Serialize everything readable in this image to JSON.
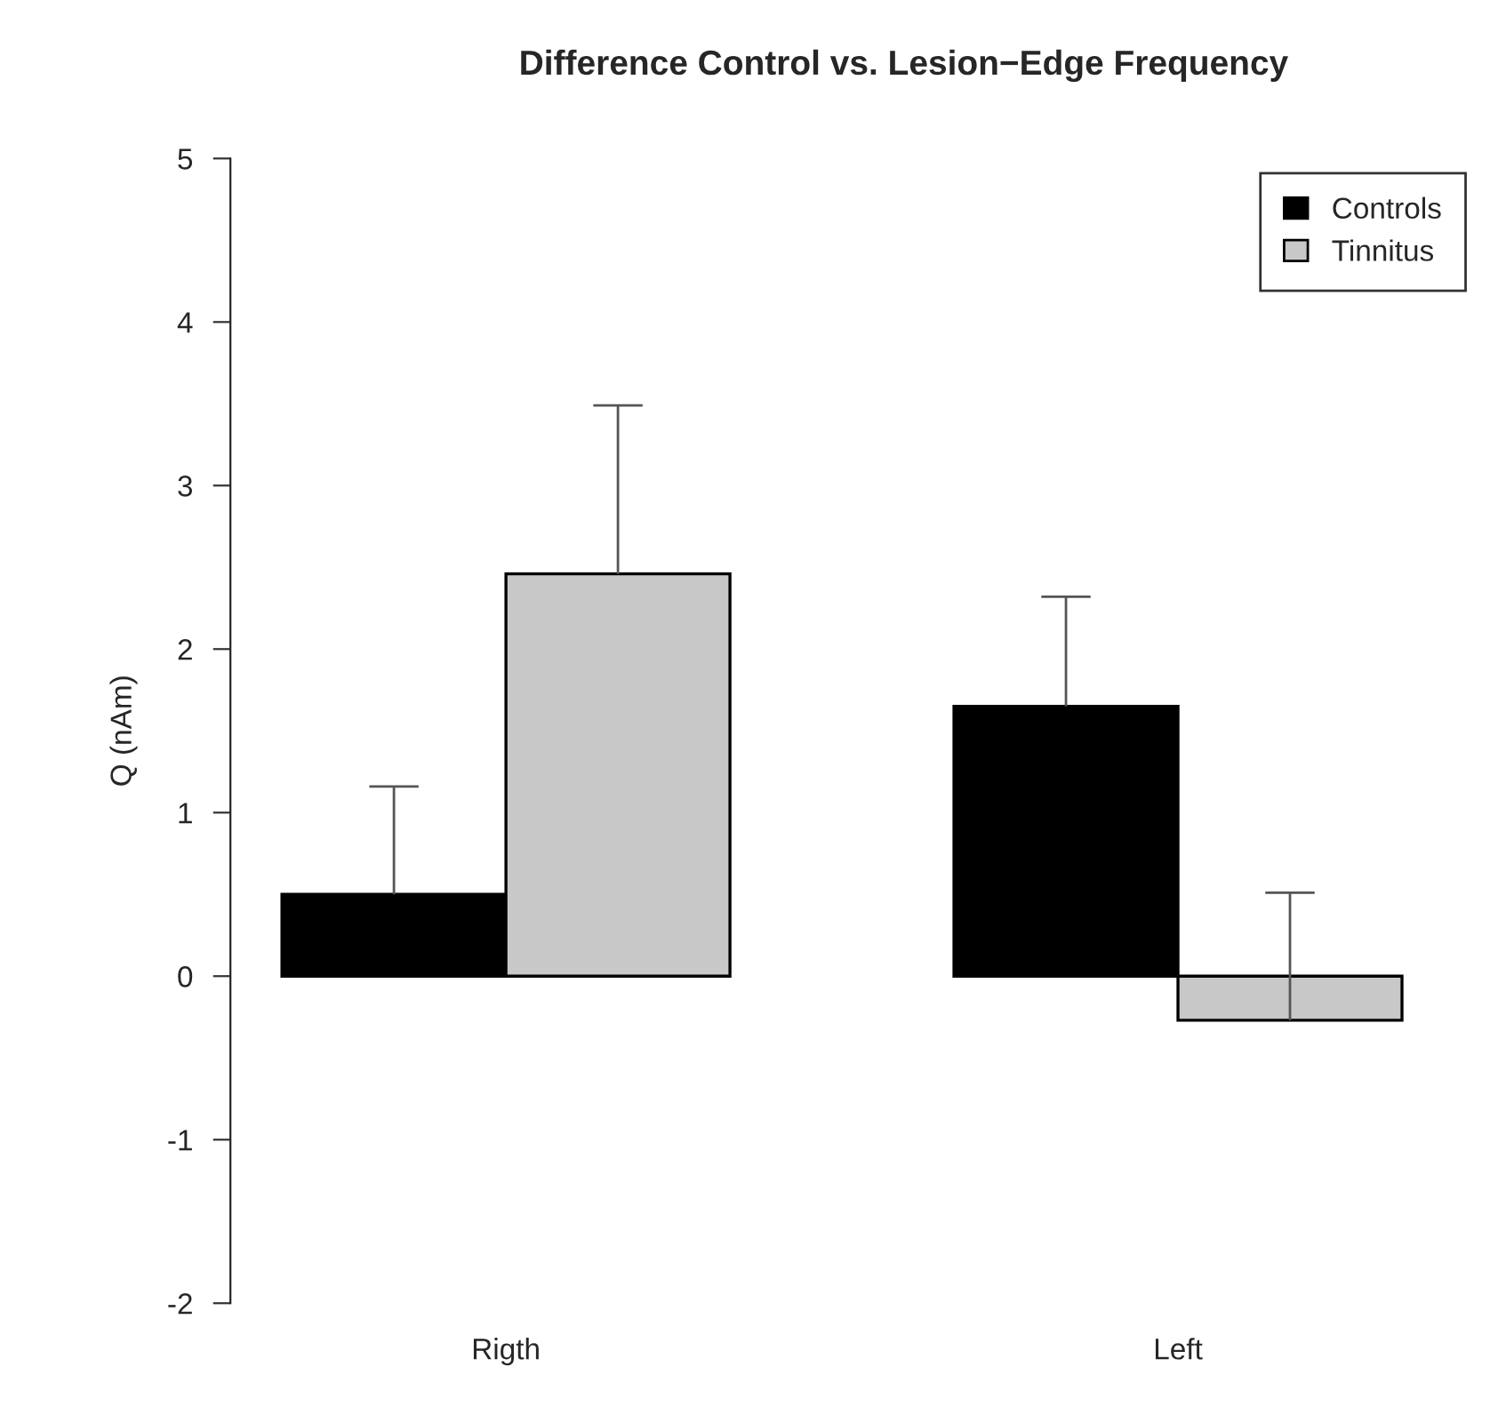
{
  "chart_data": {
    "type": "bar",
    "title": "Difference Control vs. Lesion−Edge Frequency",
    "ylabel": "Q (nAm)",
    "categories": [
      "Rigth",
      "Left"
    ],
    "series": [
      {
        "name": "Controls",
        "color": "#000000",
        "values": [
          0.5,
          1.65
        ],
        "errors": [
          [
            0.5,
            1.16
          ],
          [
            1.65,
            2.32
          ]
        ]
      },
      {
        "name": "Tinnitus",
        "color": "#c8c8c8",
        "values": [
          2.46,
          -0.27
        ],
        "errors": [
          [
            2.46,
            3.49
          ],
          [
            -0.27,
            0.51
          ]
        ]
      }
    ],
    "ylim": [
      -2,
      5
    ],
    "yticks": [
      -2,
      -1,
      0,
      1,
      2,
      3,
      4,
      5
    ],
    "grid": false,
    "legend": "top right"
  }
}
